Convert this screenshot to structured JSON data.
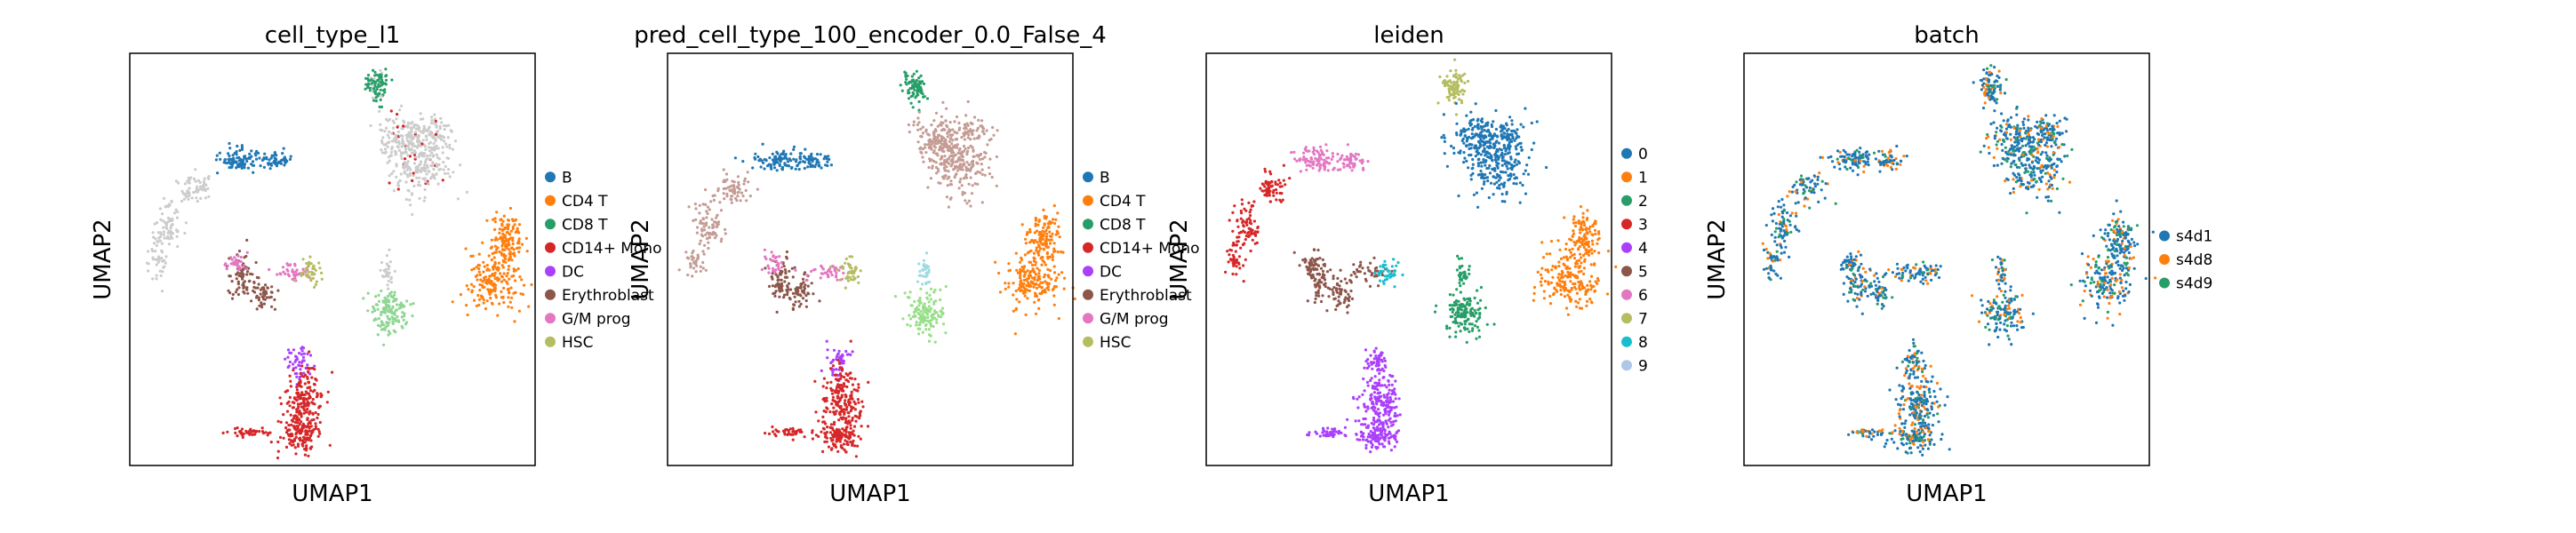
{
  "chart_data": [
    {
      "type": "scatter",
      "title": "cell_type_l1",
      "xlabel": "UMAP1",
      "ylabel": "UMAP2",
      "legend": "right",
      "legend_entries": [
        {
          "label": "B",
          "color": "#1f77b4"
        },
        {
          "label": "CD4 T",
          "color": "#ff7f0e"
        },
        {
          "label": "CD8 T",
          "color": "#279e68"
        },
        {
          "label": "CD14+ Mono",
          "color": "#d62728"
        },
        {
          "label": "DC",
          "color": "#aa40fc"
        },
        {
          "label": "Erythroblast",
          "color": "#8c564b"
        },
        {
          "label": "G/M prog",
          "color": "#e377c2"
        },
        {
          "label": "HSC",
          "color": "#b5bd61"
        }
      ]
    },
    {
      "type": "scatter",
      "title": "pred_cell_type_100_encoder_0.0_False_4",
      "xlabel": "UMAP1",
      "ylabel": "UMAP2",
      "legend": "right",
      "legend_entries": [
        {
          "label": "B",
          "color": "#1f77b4"
        },
        {
          "label": "CD4 T",
          "color": "#ff7f0e"
        },
        {
          "label": "CD8 T",
          "color": "#279e68"
        },
        {
          "label": "CD14+ Mono",
          "color": "#d62728"
        },
        {
          "label": "DC",
          "color": "#aa40fc"
        },
        {
          "label": "Erythroblast",
          "color": "#8c564b"
        },
        {
          "label": "G/M prog",
          "color": "#e377c2"
        },
        {
          "label": "HSC",
          "color": "#b5bd61"
        }
      ]
    },
    {
      "type": "scatter",
      "title": "leiden",
      "xlabel": "UMAP1",
      "ylabel": "UMAP2",
      "legend": "right",
      "legend_entries": [
        {
          "label": "0",
          "color": "#1f77b4"
        },
        {
          "label": "1",
          "color": "#ff7f0e"
        },
        {
          "label": "2",
          "color": "#279e68"
        },
        {
          "label": "3",
          "color": "#d62728"
        },
        {
          "label": "4",
          "color": "#aa40fc"
        },
        {
          "label": "5",
          "color": "#8c564b"
        },
        {
          "label": "6",
          "color": "#e377c2"
        },
        {
          "label": "7",
          "color": "#b5bd61"
        },
        {
          "label": "8",
          "color": "#17becf"
        },
        {
          "label": "9",
          "color": "#aec7e8"
        }
      ]
    },
    {
      "type": "scatter",
      "title": "batch",
      "xlabel": "UMAP1",
      "ylabel": "UMAP2",
      "legend": "right",
      "legend_entries": [
        {
          "label": "s4d1",
          "color": "#1f77b4"
        },
        {
          "label": "s4d8",
          "color": "#ff7f0e"
        },
        {
          "label": "s4d9",
          "color": "#279e68"
        }
      ]
    }
  ]
}
